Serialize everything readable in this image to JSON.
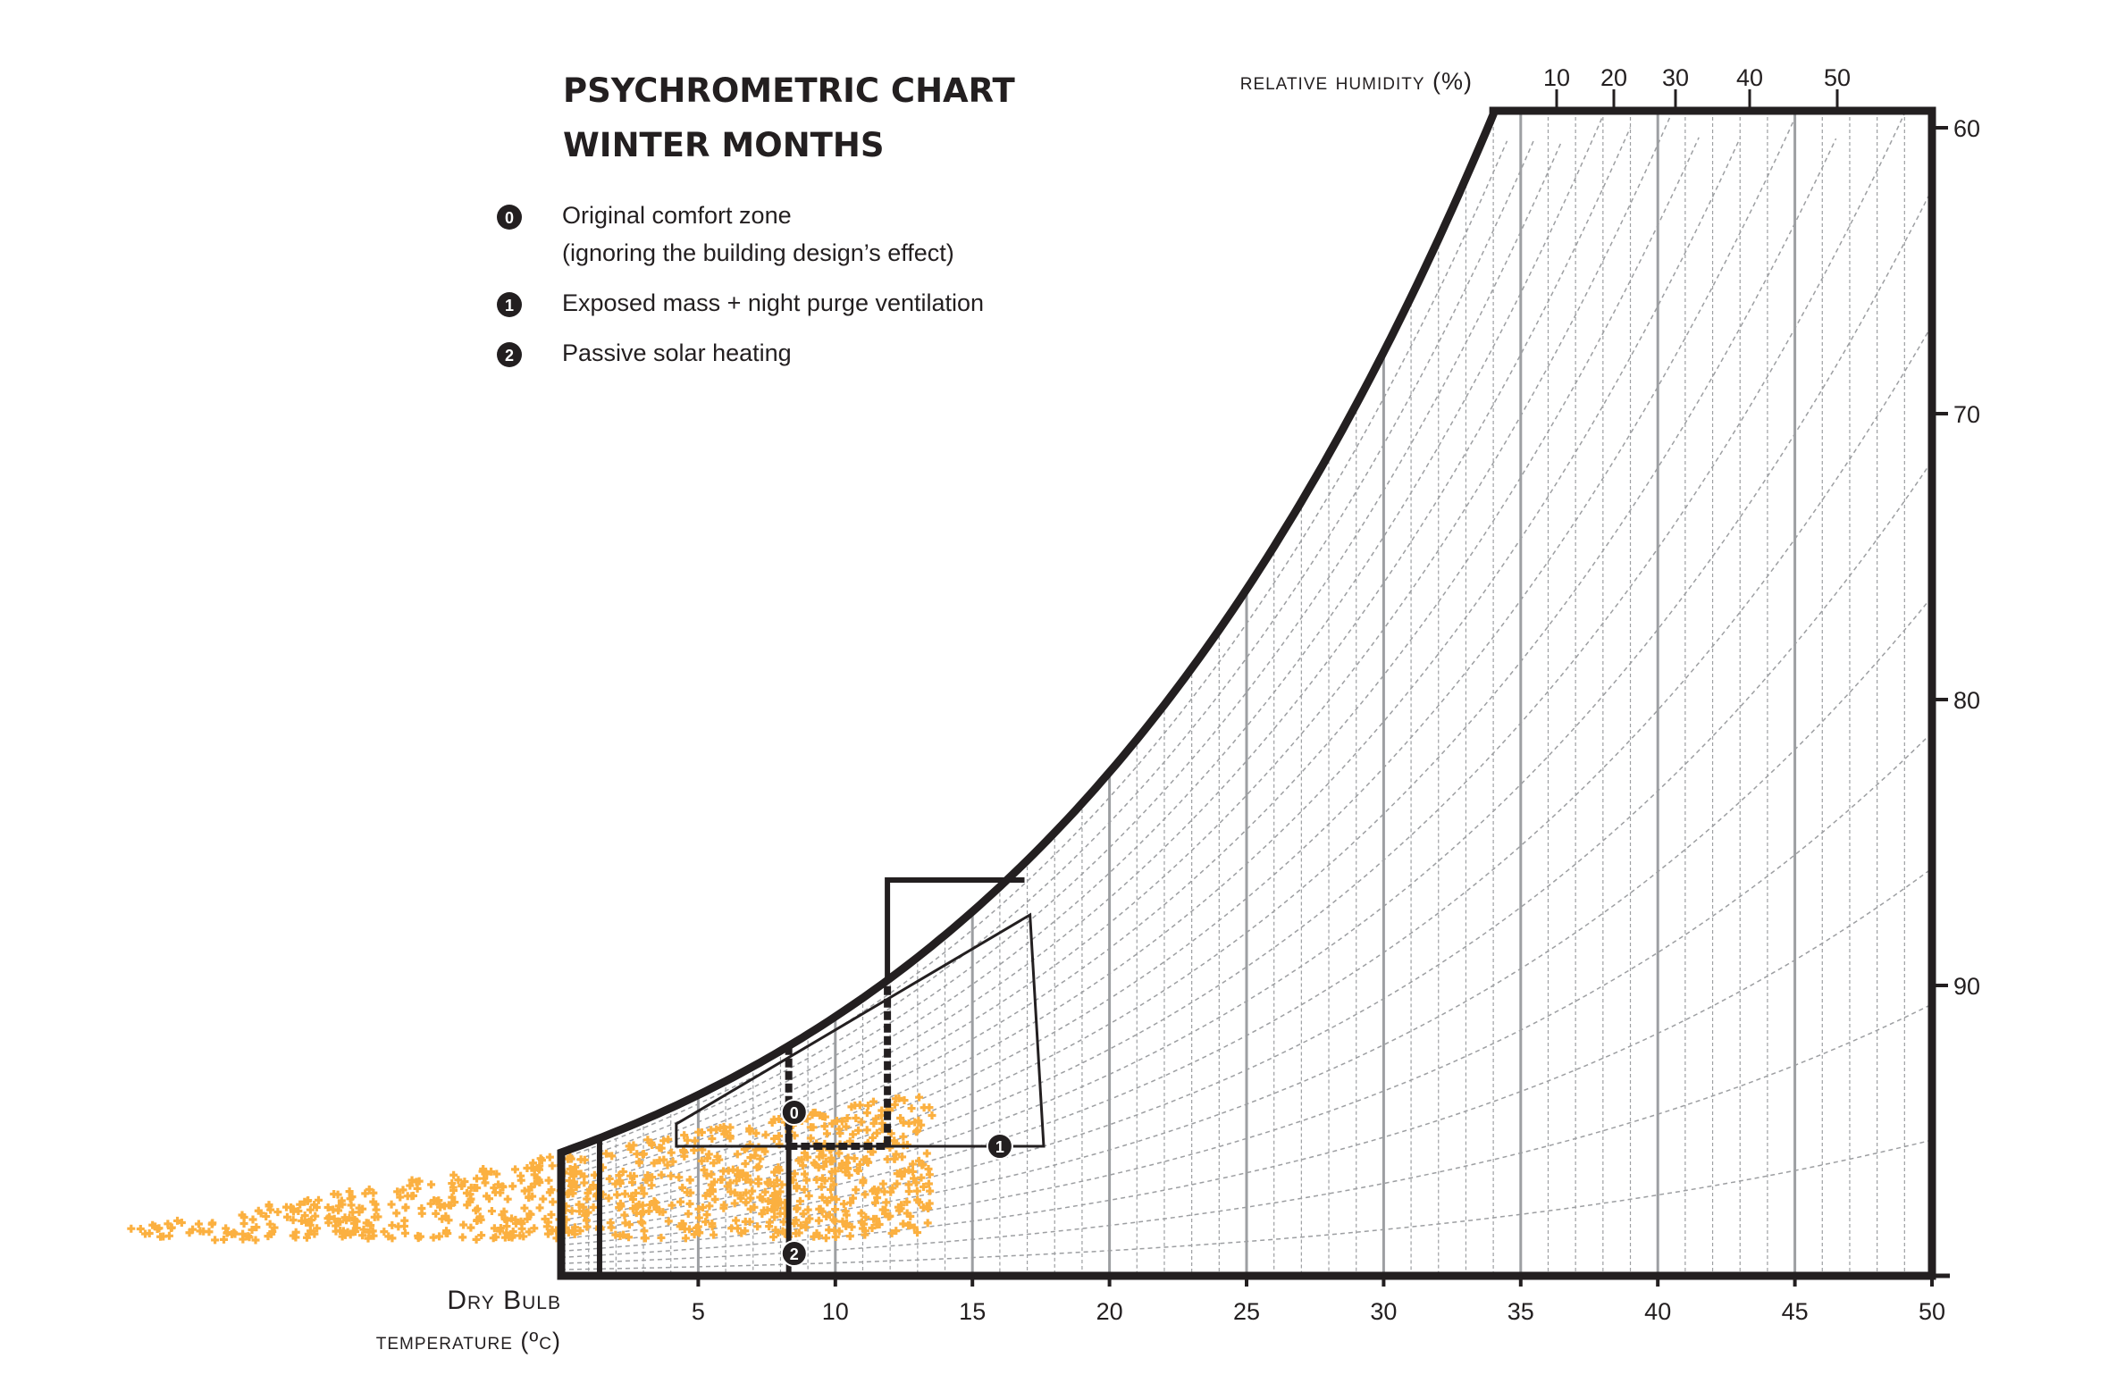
{
  "chart_data": {
    "type": "scatter",
    "title": "PSYCHROMETRIC CHART",
    "subtitle": "WINTER MONTHS",
    "xlabel_line1": "Dry Bulb",
    "xlabel_line2": "temperature (ºc)",
    "rh_label": "relative humidity (%)",
    "xlim": [
      0,
      50
    ],
    "x_ticks": [
      "5",
      "10",
      "15",
      "20",
      "25",
      "30",
      "35",
      "40",
      "45",
      "50"
    ],
    "x_tick_values": [
      5,
      10,
      15,
      20,
      25,
      30,
      35,
      40,
      45,
      50
    ],
    "rh_ticks": [
      "10",
      "20",
      "30",
      "40",
      "50"
    ],
    "rh_tick_values": [
      10,
      20,
      30,
      40,
      50
    ],
    "wet_bulb_ticks": [
      "60",
      "70",
      "80",
      "90"
    ],
    "wet_bulb_tick_values": [
      60,
      70,
      80,
      90
    ],
    "legend": [
      {
        "badge": "0",
        "label_lines": [
          "Original comfort zone",
          "(ignoring the building design’s effect)"
        ]
      },
      {
        "badge": "1",
        "label_lines": [
          "Exposed mass + night purge ventilation"
        ]
      },
      {
        "badge": "2",
        "label_lines": [
          "Passive solar heating"
        ]
      }
    ],
    "zones": [
      {
        "badge": "0",
        "label_x": 8.5
      },
      {
        "badge": "1",
        "label_x": 16
      },
      {
        "badge": "2",
        "label_x": 8.5
      }
    ],
    "colors": {
      "outline": "#231f20",
      "points": "#fbb040",
      "grid": "#9d9fa2"
    },
    "weather_points": {
      "x_range": [
        -16,
        13.5
      ],
      "note_count_estimated": 600
    }
  }
}
